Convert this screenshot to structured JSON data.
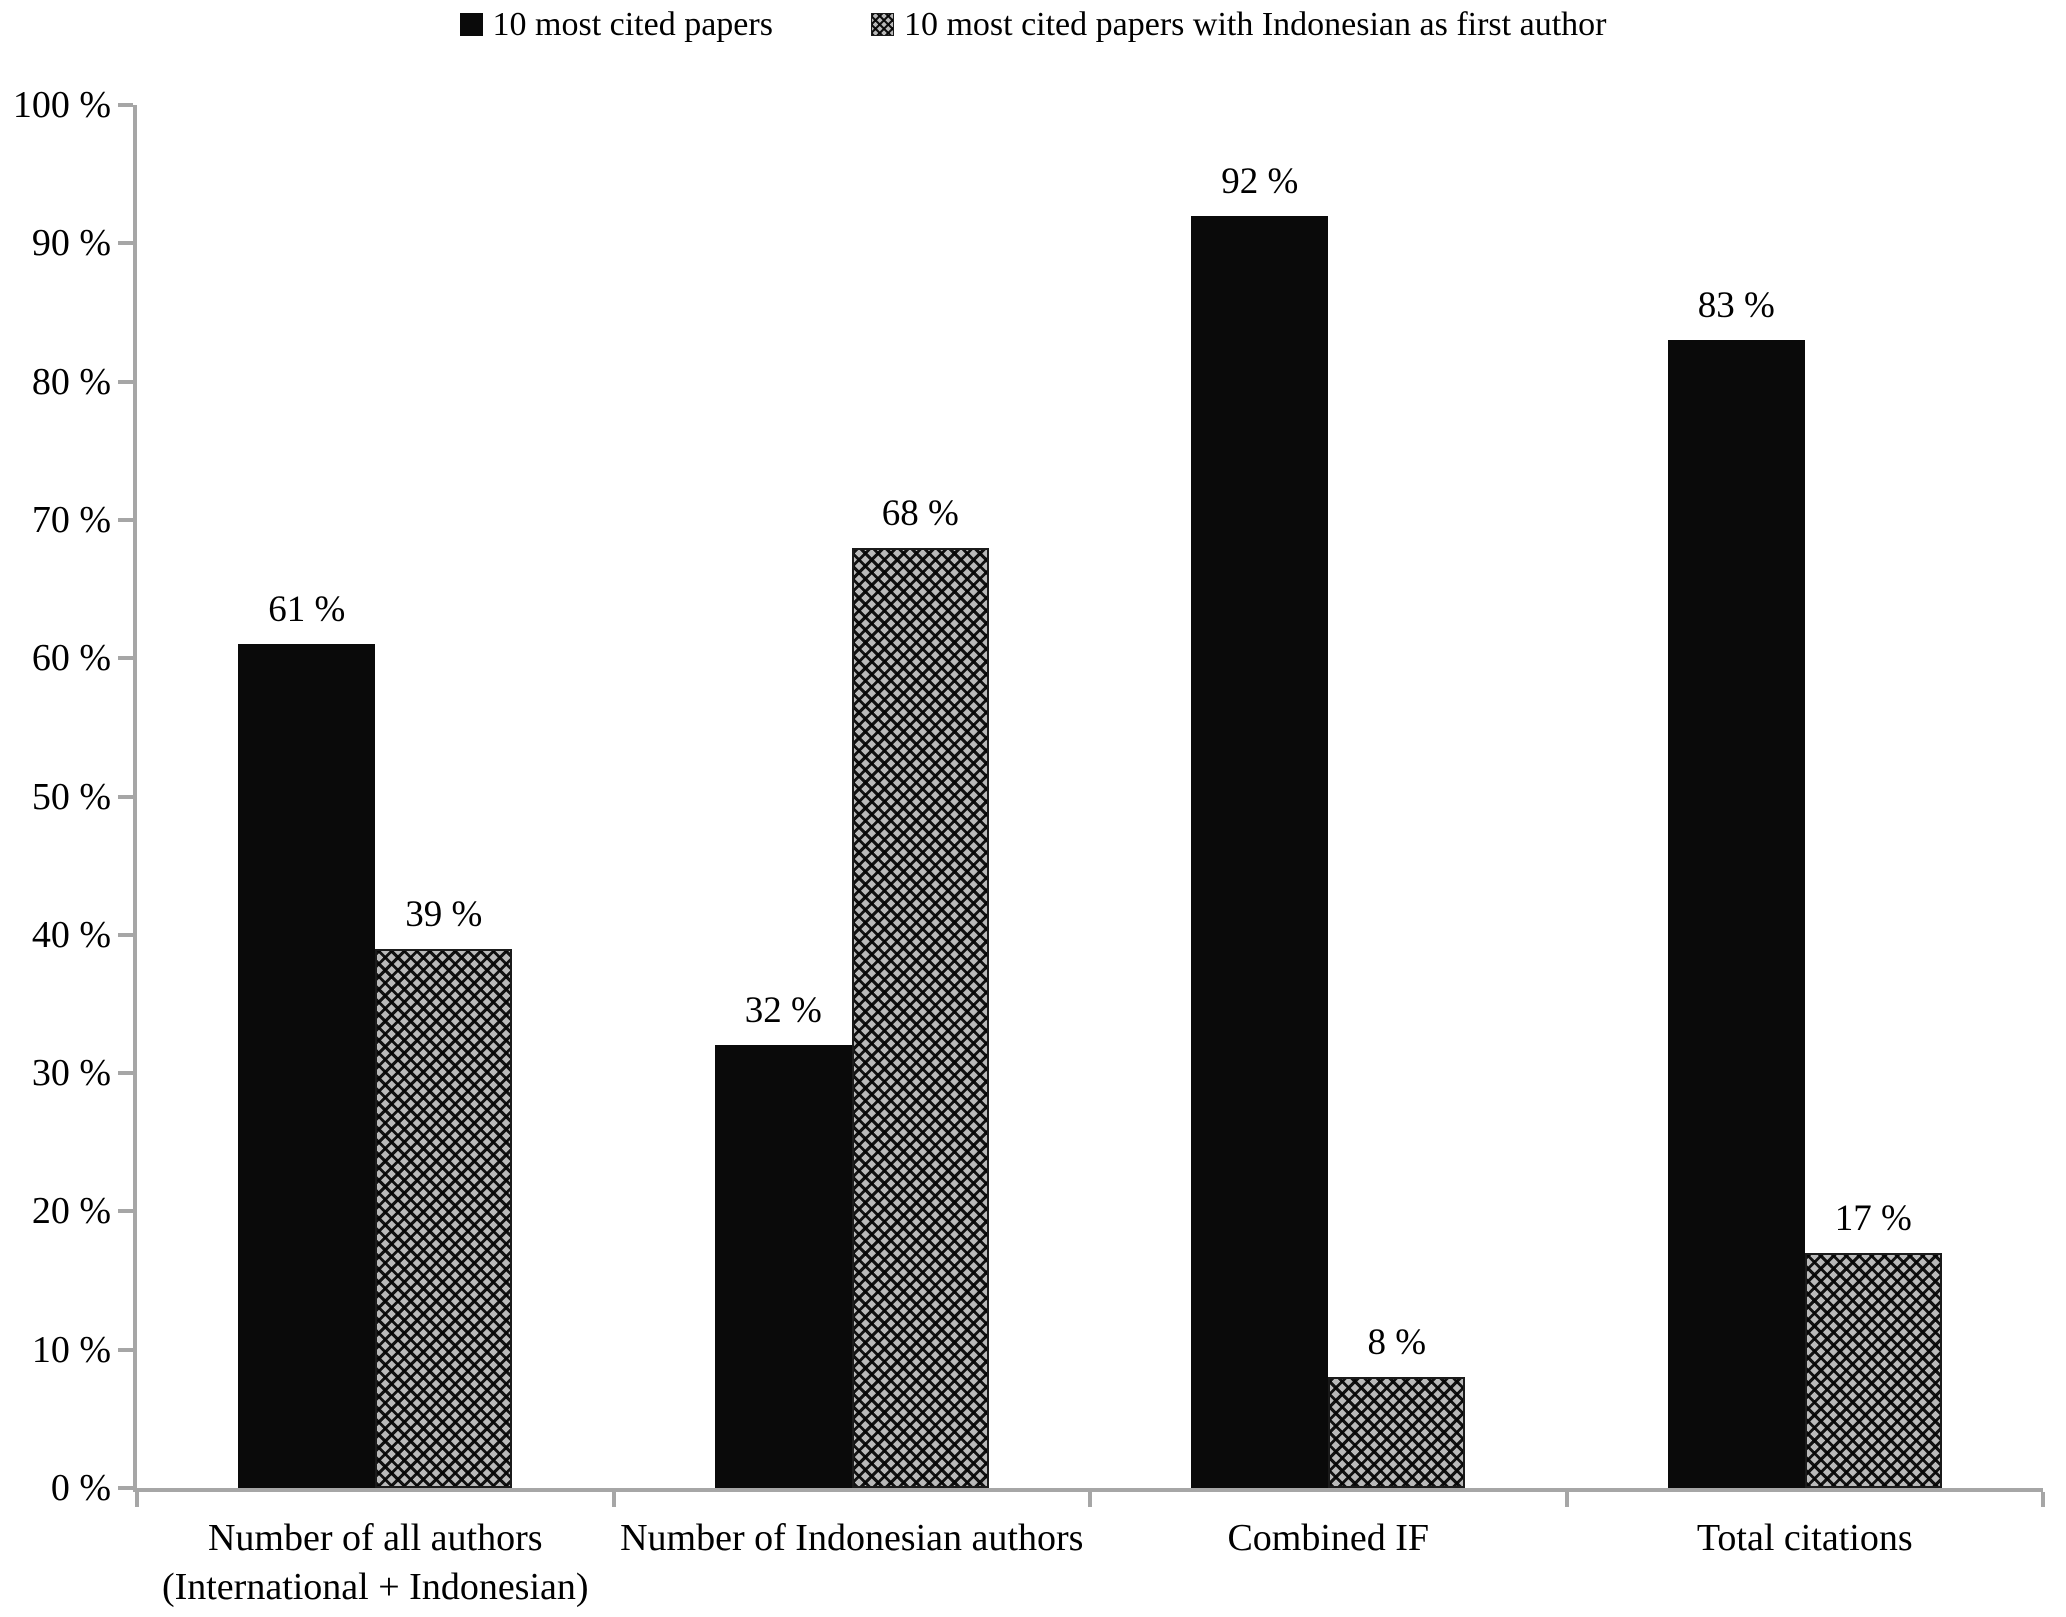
{
  "legend": [
    {
      "label": "10 most cited papers",
      "style": "solid-black"
    },
    {
      "label": "10 most cited papers with Indonesian as first author",
      "style": "dotted-pattern"
    }
  ],
  "chart_data": {
    "type": "bar",
    "title": "",
    "categories": [
      "Number of all authors\n(International + Indonesian)",
      "Number of Indonesian authors",
      "Combined IF",
      "Total citations"
    ],
    "series": [
      {
        "name": "10 most cited papers",
        "style": "solid-black",
        "values": [
          61,
          32,
          92,
          83
        ],
        "labels": [
          "61 %",
          "32 %",
          "92 %",
          "83 %"
        ]
      },
      {
        "name": "10 most cited papers with Indonesian as first author",
        "style": "dotted-pattern",
        "values": [
          39,
          68,
          8,
          17
        ],
        "labels": [
          "39 %",
          "68 %",
          "8 %",
          "17 %"
        ]
      }
    ],
    "ylabel": "",
    "xlabel": "",
    "ylim": [
      0,
      100
    ],
    "y_tick_labels": [
      "100 %",
      "90 %",
      "80 %",
      "70 %",
      "60 %",
      "50 %",
      "40 %",
      "30 %",
      "20 %",
      "10 %",
      "0 %"
    ],
    "grid": false,
    "legend_position": "top-center",
    "axis_color": "#a6a6a6",
    "bar_colors": {
      "solid-black": "#0a0a0a",
      "dotted-pattern": "#b9b9b9 + black diamond crosshatch"
    }
  }
}
